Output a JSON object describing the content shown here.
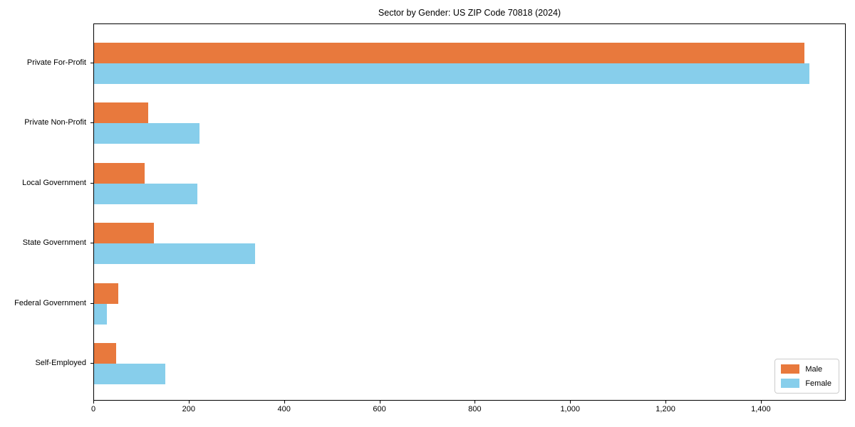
{
  "chart_data": {
    "type": "bar",
    "orientation": "horizontal",
    "title": "Sector by Gender: US ZIP Code 70818 (2024)",
    "xlabel": "",
    "ylabel": "",
    "categories": [
      "Private For-Profit",
      "Private Non-Profit",
      "Local Government",
      "State Government",
      "Federal Government",
      "Self-Employed"
    ],
    "series": [
      {
        "name": "Male",
        "color": "#e8793d",
        "values": [
          1490,
          114,
          106,
          125,
          51,
          47
        ]
      },
      {
        "name": "Female",
        "color": "#87ceeb",
        "values": [
          1500,
          221,
          216,
          337,
          27,
          150
        ]
      }
    ],
    "xlim": [
      0,
      1575
    ],
    "xticks": {
      "values": [
        0,
        200,
        400,
        600,
        800,
        1000,
        1200,
        1400
      ],
      "labels": [
        "0",
        "200",
        "400",
        "600",
        "800",
        "1,000",
        "1,200",
        "1,400"
      ]
    },
    "grid": false,
    "legend_position": "lower right",
    "background_color": "#ffffff",
    "spine_color": "#000000",
    "text_color": "#000000"
  }
}
